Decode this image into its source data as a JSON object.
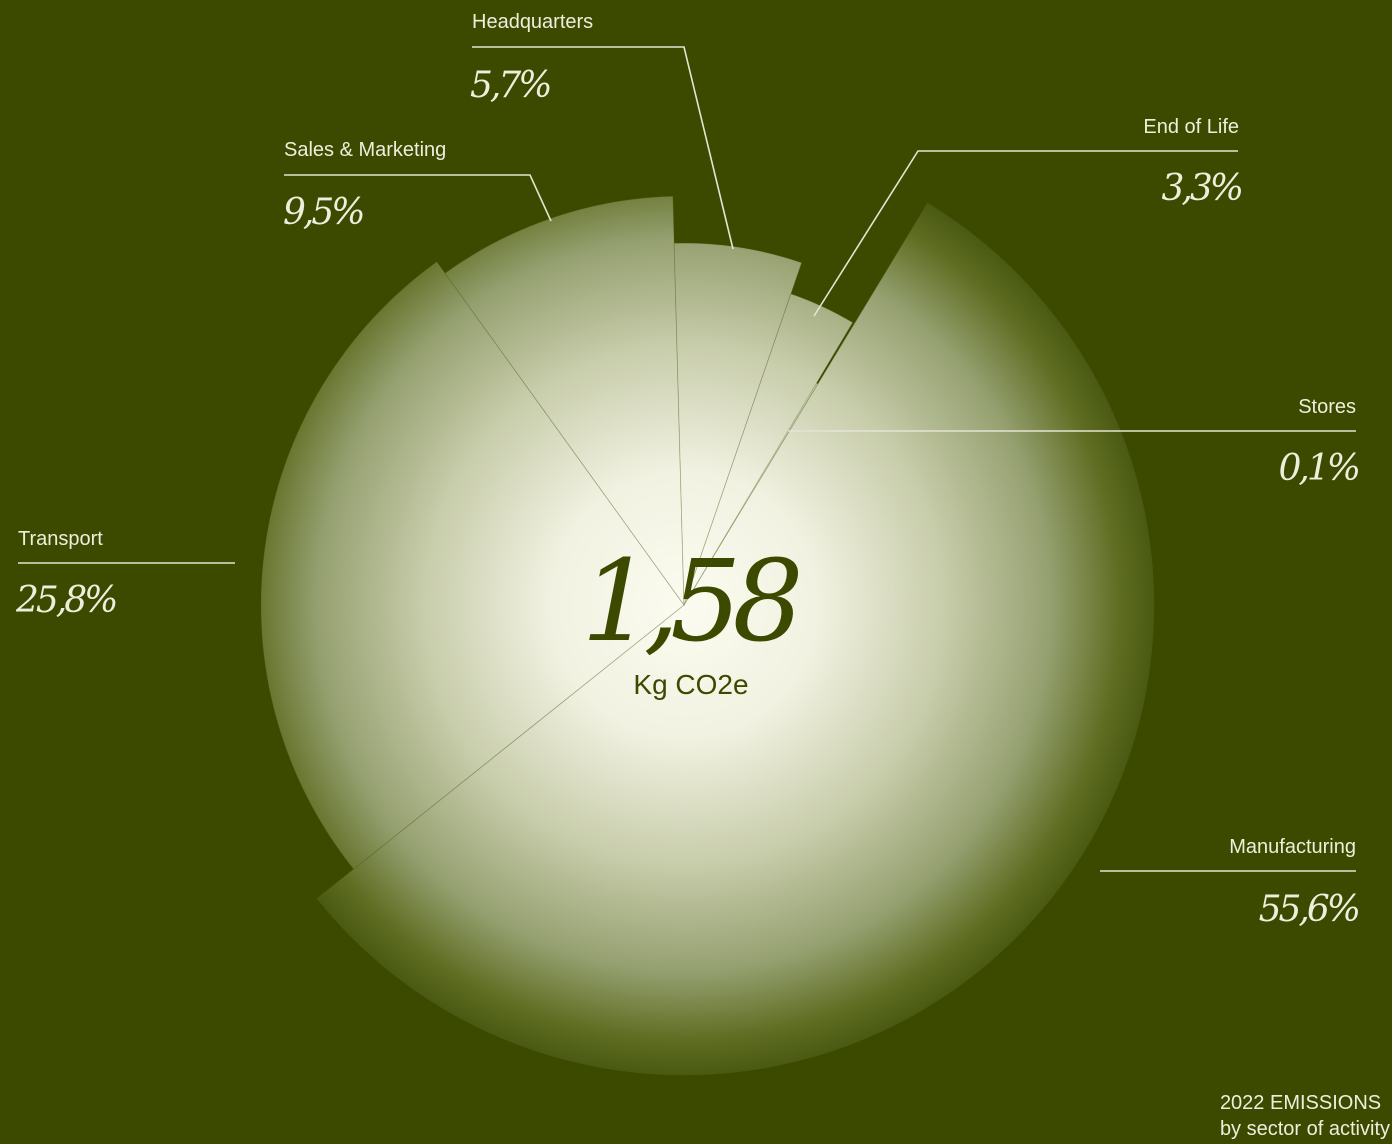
{
  "colors": {
    "background": "#3c4a00",
    "slice_center": "#fbfbf0",
    "slice_mid": "#b8bf98",
    "slice_edge": "#4a5a12",
    "text": "#eeeedd",
    "center_text": "#3c4a00"
  },
  "caption": {
    "line1": "2022 EMISSIONS",
    "line2": "by sector of activity"
  },
  "chart_data": {
    "type": "pie",
    "variant": "polar-area",
    "start": "12 o'clock",
    "direction": "clockwise",
    "center": {
      "value": "1,58",
      "unit": "Kg CO2e"
    },
    "slices": [
      {
        "label": "Stores",
        "value": 0.1,
        "display": "0,1%",
        "radius_scale": 0.55
      },
      {
        "label": "Manufacturing",
        "value": 55.6,
        "display": "55,6%",
        "radius_scale": 1.0
      },
      {
        "label": "Transport",
        "value": 25.8,
        "display": "25,8%",
        "radius_scale": 0.9
      },
      {
        "label": "Sales & Marketing",
        "value": 9.5,
        "display": "9,5%",
        "radius_scale": 0.87
      },
      {
        "label": "Headquarters",
        "value": 5.7,
        "display": "5,7%",
        "radius_scale": 0.77
      },
      {
        "label": "End of Life",
        "value": 3.3,
        "display": "3,3%",
        "radius_scale": 0.7
      }
    ]
  }
}
